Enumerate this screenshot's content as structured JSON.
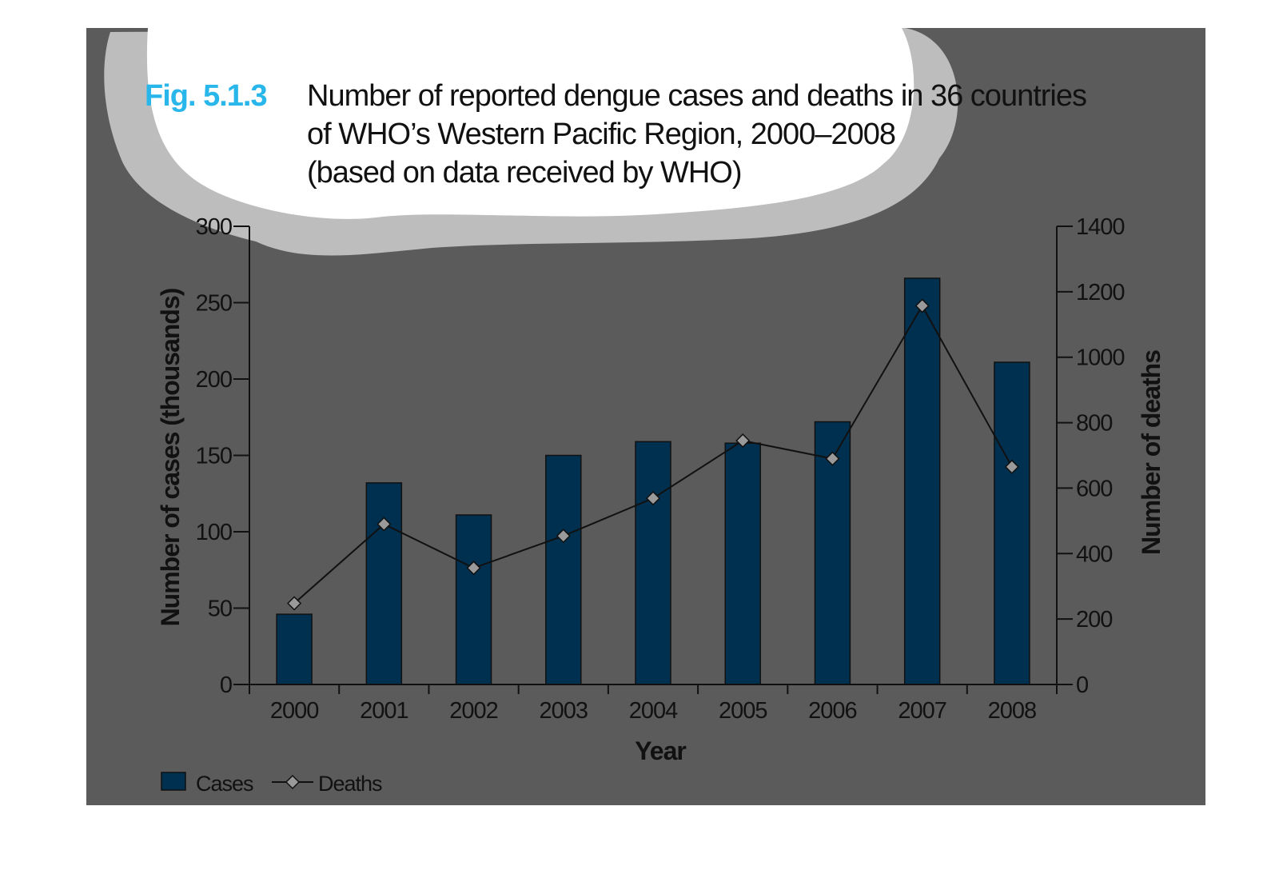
{
  "figure": {
    "number": "Fig. 5.1.3",
    "title_lines": [
      "Number of reported dengue cases and deaths in 36 countries",
      "of WHO’s Western Pacific Region, 2000–2008",
      "(based on data received by WHO)"
    ]
  },
  "colors": {
    "panel": "#5b5b5b",
    "bar": "#00304f",
    "line": "#111111",
    "marker": "#9a9a9a",
    "fig_number": "#29b6ea",
    "text": "#111111",
    "cloud_outer": "#bdbdbd",
    "cloud_inner": "#ffffff"
  },
  "chart_data": {
    "type": "bar",
    "categories": [
      "2000",
      "2001",
      "2002",
      "2003",
      "2004",
      "2005",
      "2006",
      "2007",
      "2008"
    ],
    "series": [
      {
        "name": "Cases",
        "type": "bar",
        "axis": "left",
        "values": [
          46,
          132,
          111,
          150,
          159,
          158,
          172,
          266,
          211
        ]
      },
      {
        "name": "Deaths",
        "type": "line",
        "axis": "right",
        "marker": "diamond",
        "values": [
          248,
          490,
          356,
          454,
          569,
          745,
          690,
          1157,
          665
        ]
      }
    ],
    "xlabel": "Year",
    "ylabel": "Number of cases (thousands)",
    "ylabel_right": "Number of deaths",
    "ylim": [
      0,
      300
    ],
    "ylim_right": [
      0,
      1400
    ],
    "yticks": [
      "0",
      "50",
      "100",
      "150",
      "200",
      "250",
      "300"
    ],
    "yticks_right": [
      "0",
      "200",
      "400",
      "600",
      "800",
      "1000",
      "1200",
      "1400"
    ],
    "legend": {
      "placement": "bottom-left",
      "entries": [
        "Cases",
        "Deaths"
      ]
    },
    "grid": false
  }
}
